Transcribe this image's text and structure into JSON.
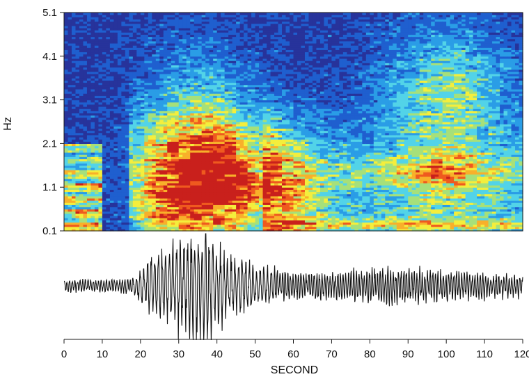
{
  "chart_data": [
    {
      "type": "heatmap",
      "title": "",
      "xlabel": "",
      "ylabel": "Hz",
      "xlim": [
        0,
        120
      ],
      "ylim": [
        0.1,
        5.1
      ],
      "y_ticks": [
        "0.1",
        "1.1",
        "2.1",
        "3.1",
        "4.1",
        "5.1"
      ],
      "y_tick_values": [
        0.1,
        1.1,
        2.1,
        3.1,
        4.1,
        5.1
      ],
      "colormap": [
        "#27339b",
        "#1f5fcf",
        "#2a9de6",
        "#52d3e8",
        "#a6e07a",
        "#f4ee3c",
        "#f8b02a",
        "#ef5a1f",
        "#c9201c"
      ],
      "energy_regions": [
        {
          "t_start": 0,
          "t_end": 10,
          "f_start": 0.1,
          "f_end": 2.1,
          "level": "banded low-frequency energy, medium"
        },
        {
          "t_start": 20,
          "t_end": 55,
          "f_start": 0.1,
          "f_end": 2.6,
          "level": "high"
        },
        {
          "t_start": 23,
          "t_end": 55,
          "f_start": 0.7,
          "f_end": 1.3,
          "level": "peak"
        },
        {
          "t_start": 55,
          "t_end": 120,
          "f_start": 0.1,
          "f_end": 2.6,
          "level": "medium"
        },
        {
          "t_start": 88,
          "t_end": 110,
          "f_start": 2.1,
          "f_end": 4.8,
          "level": "medium-low"
        }
      ]
    },
    {
      "type": "line",
      "title": "",
      "xlabel": "SECOND",
      "ylabel": "",
      "xlim": [
        0,
        120
      ],
      "x_ticks": [
        "0",
        "10",
        "20",
        "30",
        "40",
        "50",
        "60",
        "70",
        "80",
        "90",
        "100",
        "110",
        "120"
      ],
      "x_tick_values": [
        0,
        10,
        20,
        30,
        40,
        50,
        60,
        70,
        80,
        90,
        100,
        110,
        120
      ],
      "envelope": {
        "t": [
          0,
          10,
          18,
          22,
          26,
          30,
          34,
          38,
          42,
          46,
          50,
          55,
          60,
          70,
          80,
          90,
          100,
          110,
          120
        ],
        "amplitude": [
          0.1,
          0.1,
          0.13,
          0.45,
          0.6,
          0.7,
          0.9,
          1.0,
          0.55,
          0.45,
          0.35,
          0.3,
          0.22,
          0.22,
          0.28,
          0.3,
          0.24,
          0.2,
          0.17
        ]
      }
    }
  ]
}
